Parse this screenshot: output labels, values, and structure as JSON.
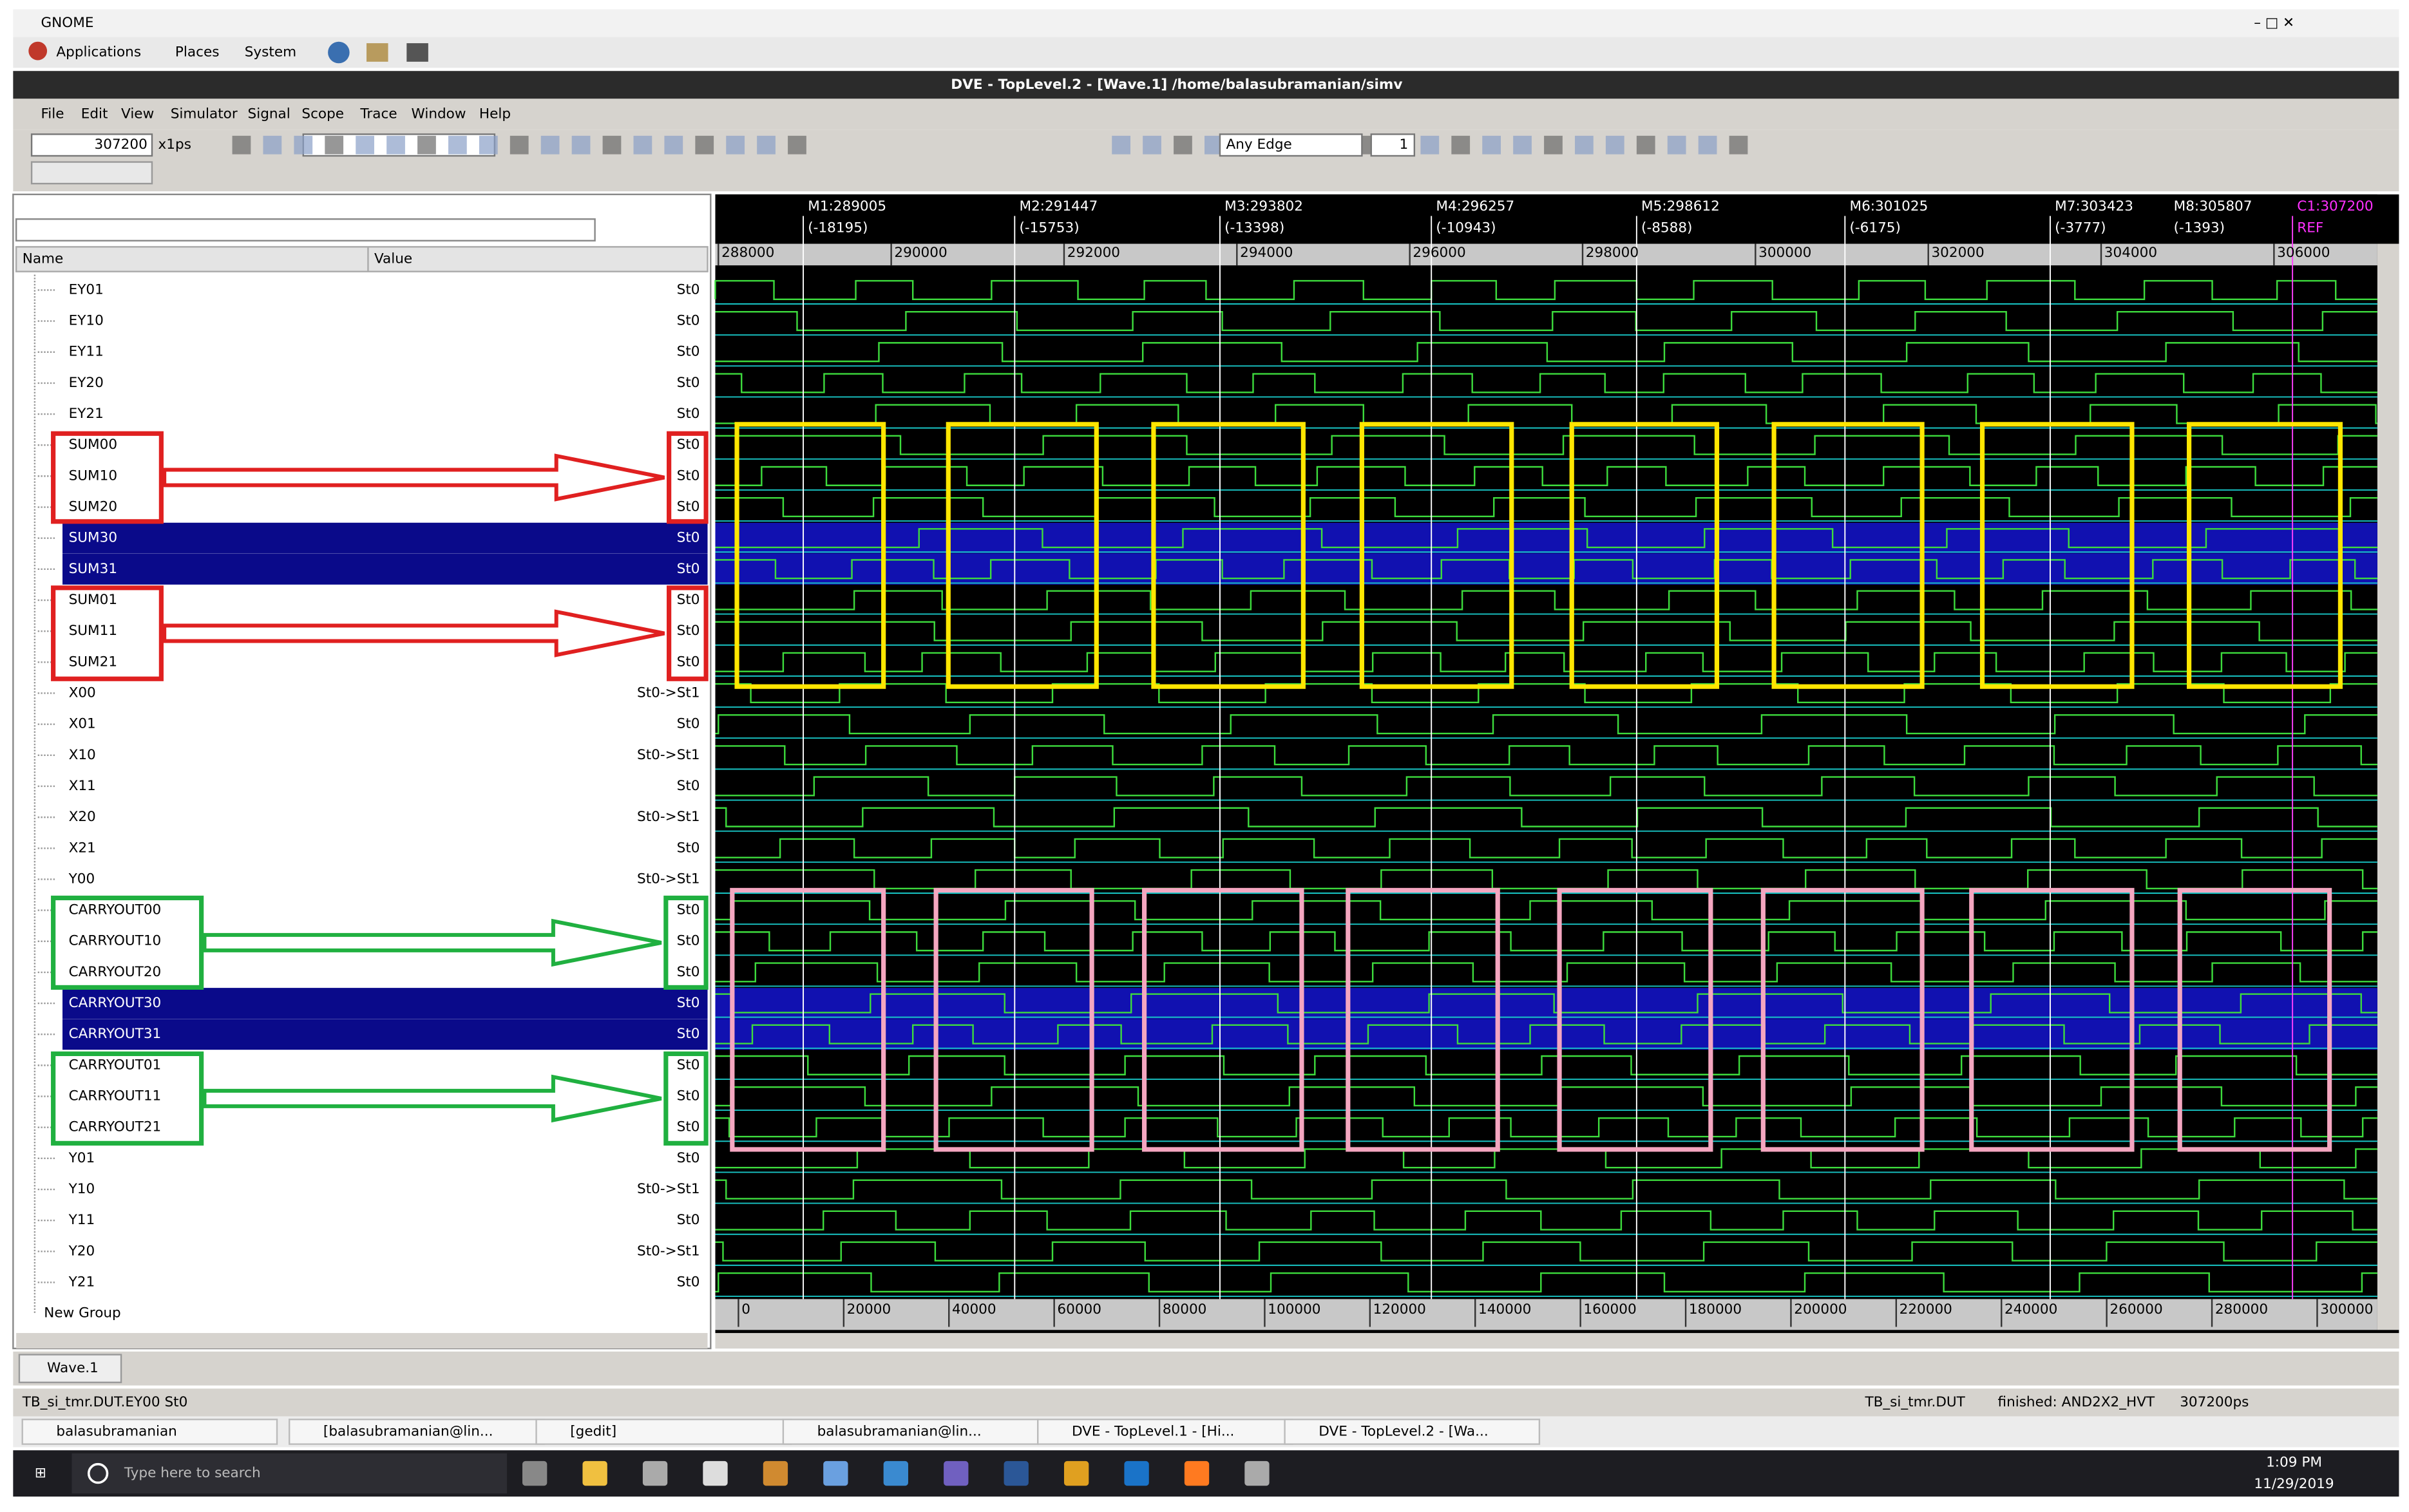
{
  "os_bar": {
    "title": "GNOME",
    "menus": [
      "Applications",
      "Places",
      "System"
    ]
  },
  "window_title": "DVE - TopLevel.2 - [Wave.1]  /home/balasubramanian/simv",
  "menu": [
    "File",
    "Edit",
    "View",
    "Simulator",
    "Signal",
    "Scope",
    "Trace",
    "Window",
    "Help"
  ],
  "toolbar": {
    "time": "307200",
    "unit": "x1ps",
    "edge": "Any Edge",
    "step": "1"
  },
  "signal_panel": {
    "columns": [
      "Name",
      "Value"
    ],
    "signals": [
      {
        "name": "EY01",
        "value": "St0"
      },
      {
        "name": "EY10",
        "value": "St0"
      },
      {
        "name": "EY11",
        "value": "St0"
      },
      {
        "name": "EY20",
        "value": "St0"
      },
      {
        "name": "EY21",
        "value": "St0"
      },
      {
        "name": "SUM00",
        "value": "St0"
      },
      {
        "name": "SUM10",
        "value": "St0"
      },
      {
        "name": "SUM20",
        "value": "St0"
      },
      {
        "name": "SUM30",
        "value": "St0",
        "selected": true
      },
      {
        "name": "SUM31",
        "value": "St0",
        "selected": true
      },
      {
        "name": "SUM01",
        "value": "St0"
      },
      {
        "name": "SUM11",
        "value": "St0"
      },
      {
        "name": "SUM21",
        "value": "St0"
      },
      {
        "name": "X00",
        "value": "St0->St1"
      },
      {
        "name": "X01",
        "value": "St0"
      },
      {
        "name": "X10",
        "value": "St0->St1"
      },
      {
        "name": "X11",
        "value": "St0"
      },
      {
        "name": "X20",
        "value": "St0->St1"
      },
      {
        "name": "X21",
        "value": "St0"
      },
      {
        "name": "Y00",
        "value": "St0->St1"
      },
      {
        "name": "CARRYOUT00",
        "value": "St0"
      },
      {
        "name": "CARRYOUT10",
        "value": "St0"
      },
      {
        "name": "CARRYOUT20",
        "value": "St0"
      },
      {
        "name": "CARRYOUT30",
        "value": "St0",
        "selected": true
      },
      {
        "name": "CARRYOUT31",
        "value": "St0",
        "selected": true
      },
      {
        "name": "CARRYOUT01",
        "value": "St0"
      },
      {
        "name": "CARRYOUT11",
        "value": "St0"
      },
      {
        "name": "CARRYOUT21",
        "value": "St0"
      },
      {
        "name": "Y01",
        "value": "St0"
      },
      {
        "name": "Y10",
        "value": "St0->St1"
      },
      {
        "name": "Y11",
        "value": "St0"
      },
      {
        "name": "Y20",
        "value": "St0->St1"
      },
      {
        "name": "Y21",
        "value": "St0"
      }
    ],
    "group": "New Group"
  },
  "wave_panel": {
    "markers": [
      {
        "label": "M1:289005",
        "delta": "(-18195)"
      },
      {
        "label": "M2:291447",
        "delta": "(-15753)"
      },
      {
        "label": "M3:293802",
        "delta": "(-13398)"
      },
      {
        "label": "M4:296257",
        "delta": "(-10943)"
      },
      {
        "label": "M5:298612",
        "delta": "(-8588)"
      },
      {
        "label": "M6:301025",
        "delta": "(-6175)"
      },
      {
        "label": "M7:303423",
        "delta": "(-3777)"
      },
      {
        "label": "M8:305807",
        "delta": "(-1393)"
      },
      {
        "label": "C1:307200",
        "delta": "REF"
      }
    ],
    "top_ruler": [
      "288000",
      "290000",
      "292000",
      "294000",
      "296000",
      "298000",
      "300000",
      "302000",
      "304000",
      "306000"
    ],
    "bottom_ruler": [
      "0",
      "20000",
      "40000",
      "60000",
      "80000",
      "100000",
      "120000",
      "140000",
      "160000",
      "180000",
      "200000",
      "220000",
      "240000",
      "260000",
      "280000",
      "300000"
    ]
  },
  "tab": "Wave.1",
  "status": {
    "left": "TB_si_tmr.DUT.EY00 St0",
    "scope": "TB_si_tmr.DUT",
    "message": "finished: AND2X2_HVT",
    "time": "307200ps"
  },
  "gnome_tasks": [
    "balasubramanian",
    "[balasubramanian@lin...",
    "[gedit]",
    "balasubramanian@lin...",
    "DVE - TopLevel.1 - [Hi...",
    "DVE - TopLevel.2 - [Wa..."
  ],
  "windows_taskbar": {
    "search": "Type here to search",
    "time": "1:09 PM",
    "date": "11/29/2019"
  }
}
